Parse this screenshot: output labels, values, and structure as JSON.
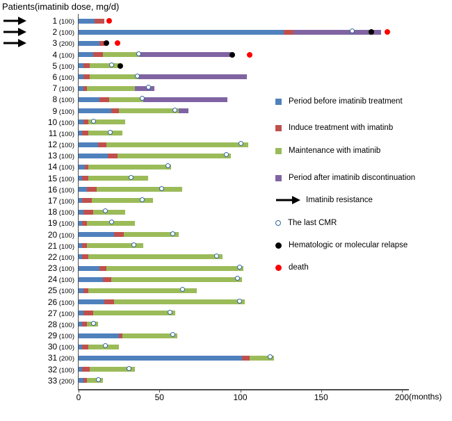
{
  "chart_data": {
    "type": "bar",
    "subtype": "horizontal-stacked-swimmer-plot",
    "title": "Patients(imatinib dose, mg/d)",
    "x_axis": {
      "label": "(months)",
      "min": 0,
      "max": 200,
      "ticks": [
        "0",
        "50",
        "100",
        "150",
        "200"
      ]
    },
    "grid": false,
    "legend_position": "right",
    "colors": {
      "period_before": "#4F81BD",
      "induce": "#C0504D",
      "maintenance": "#9BBB59",
      "period_after": "#8064A2",
      "last_cmr_ring": "#31659C",
      "relapse": "#000000",
      "death": "#FF0000"
    },
    "legend": [
      {
        "swatch": "before",
        "label": "Period before imatinib treatment"
      },
      {
        "swatch": "induce",
        "label": "Induce treatment with imatinb"
      },
      {
        "swatch": "maintenance",
        "label": "Maintenance with imatinib"
      },
      {
        "swatch": "after",
        "label": "Period after imatinib discontinuation"
      },
      {
        "swatch": "arrow",
        "label": "Imatinib resistance"
      },
      {
        "swatch": "cmr",
        "label": "The last CMR"
      },
      {
        "swatch": "relapse",
        "label": "Hematologic or molecular relapse"
      },
      {
        "swatch": "death",
        "label": "death"
      }
    ],
    "patients": [
      {
        "id": 1,
        "dose": 100,
        "resistance": true,
        "segments": {
          "before": 10,
          "induce": 6,
          "maintenance": 0,
          "after": 0
        },
        "markers": {
          "last_cmr": null,
          "relapse": null,
          "death": 19
        }
      },
      {
        "id": 2,
        "dose": 100,
        "resistance": true,
        "segments": {
          "before": 127,
          "induce": 6,
          "maintenance": 0,
          "after": 54
        },
        "markers": {
          "last_cmr": 170,
          "relapse": 181,
          "death": 191
        }
      },
      {
        "id": 3,
        "dose": 200,
        "resistance": true,
        "segments": {
          "before": 13,
          "induce": 4,
          "maintenance": 0,
          "after": 0
        },
        "markers": {
          "last_cmr": null,
          "relapse": 17,
          "death": 24
        }
      },
      {
        "id": 4,
        "dose": 100,
        "resistance": false,
        "segments": {
          "before": 9,
          "induce": 6,
          "maintenance": 23,
          "after": 58
        },
        "markers": {
          "last_cmr": 38,
          "relapse": 95,
          "death": 106
        }
      },
      {
        "id": 5,
        "dose": 100,
        "resistance": false,
        "segments": {
          "before": 3,
          "induce": 4,
          "maintenance": 18,
          "after": 0
        },
        "markers": {
          "last_cmr": 21,
          "relapse": 26,
          "death": null
        }
      },
      {
        "id": 6,
        "dose": 100,
        "resistance": false,
        "segments": {
          "before": 3,
          "induce": 4,
          "maintenance": 30,
          "after": 67
        },
        "markers": {
          "last_cmr": 37,
          "relapse": null,
          "death": null
        }
      },
      {
        "id": 7,
        "dose": 100,
        "resistance": false,
        "segments": {
          "before": 3,
          "induce": 2,
          "maintenance": 30,
          "after": 12
        },
        "markers": {
          "last_cmr": 44,
          "relapse": null,
          "death": null
        }
      },
      {
        "id": 8,
        "dose": 100,
        "resistance": false,
        "segments": {
          "before": 13,
          "induce": 6,
          "maintenance": 21,
          "after": 52
        },
        "markers": {
          "last_cmr": 40,
          "relapse": null,
          "death": null
        }
      },
      {
        "id": 9,
        "dose": 100,
        "resistance": false,
        "segments": {
          "before": 20,
          "induce": 5,
          "maintenance": 37,
          "after": 6
        },
        "markers": {
          "last_cmr": 60,
          "relapse": null,
          "death": null
        }
      },
      {
        "id": 10,
        "dose": 100,
        "resistance": false,
        "segments": {
          "before": 3,
          "induce": 3,
          "maintenance": 23,
          "after": 0
        },
        "markers": {
          "last_cmr": 10,
          "relapse": null,
          "death": null
        }
      },
      {
        "id": 11,
        "dose": 100,
        "resistance": false,
        "segments": {
          "before": 2,
          "induce": 4,
          "maintenance": 21,
          "after": 0
        },
        "markers": {
          "last_cmr": 20,
          "relapse": null,
          "death": null
        }
      },
      {
        "id": 12,
        "dose": 100,
        "resistance": false,
        "segments": {
          "before": 12,
          "induce": 5,
          "maintenance": 88,
          "after": 0
        },
        "markers": {
          "last_cmr": 101,
          "relapse": null,
          "death": null
        }
      },
      {
        "id": 13,
        "dose": 100,
        "resistance": false,
        "segments": {
          "before": 18,
          "induce": 6,
          "maintenance": 70,
          "after": 0
        },
        "markers": {
          "last_cmr": 92,
          "relapse": null,
          "death": null
        }
      },
      {
        "id": 14,
        "dose": 100,
        "resistance": false,
        "segments": {
          "before": 4,
          "induce": 2,
          "maintenance": 51,
          "after": 0
        },
        "markers": {
          "last_cmr": 56,
          "relapse": null,
          "death": null
        }
      },
      {
        "id": 15,
        "dose": 100,
        "resistance": false,
        "segments": {
          "before": 2,
          "induce": 4,
          "maintenance": 37,
          "after": 0
        },
        "markers": {
          "last_cmr": 33,
          "relapse": null,
          "death": null
        }
      },
      {
        "id": 16,
        "dose": 100,
        "resistance": false,
        "segments": {
          "before": 5,
          "induce": 6,
          "maintenance": 53,
          "after": 0
        },
        "markers": {
          "last_cmr": 52,
          "relapse": null,
          "death": null
        }
      },
      {
        "id": 17,
        "dose": 100,
        "resistance": false,
        "segments": {
          "before": 2,
          "induce": 6,
          "maintenance": 38,
          "after": 0
        },
        "markers": {
          "last_cmr": 40,
          "relapse": null,
          "death": null
        }
      },
      {
        "id": 18,
        "dose": 100,
        "resistance": false,
        "segments": {
          "before": 3,
          "induce": 6,
          "maintenance": 20,
          "after": 0
        },
        "markers": {
          "last_cmr": 17,
          "relapse": null,
          "death": null
        }
      },
      {
        "id": 19,
        "dose": 100,
        "resistance": false,
        "segments": {
          "before": 2,
          "induce": 3,
          "maintenance": 30,
          "after": 0
        },
        "markers": {
          "last_cmr": 21,
          "relapse": null,
          "death": null
        }
      },
      {
        "id": 20,
        "dose": 100,
        "resistance": false,
        "segments": {
          "before": 22,
          "induce": 6,
          "maintenance": 34,
          "after": 0
        },
        "markers": {
          "last_cmr": 59,
          "relapse": null,
          "death": null
        }
      },
      {
        "id": 21,
        "dose": 100,
        "resistance": false,
        "segments": {
          "before": 2,
          "induce": 3,
          "maintenance": 35,
          "after": 0
        },
        "markers": {
          "last_cmr": 35,
          "relapse": null,
          "death": null
        }
      },
      {
        "id": 22,
        "dose": 100,
        "resistance": false,
        "segments": {
          "before": 2,
          "induce": 4,
          "maintenance": 83,
          "after": 0
        },
        "markers": {
          "last_cmr": 86,
          "relapse": null,
          "death": null
        }
      },
      {
        "id": 23,
        "dose": 100,
        "resistance": false,
        "segments": {
          "before": 13,
          "induce": 4,
          "maintenance": 85,
          "after": 0
        },
        "markers": {
          "last_cmr": 100,
          "relapse": null,
          "death": null
        }
      },
      {
        "id": 24,
        "dose": 100,
        "resistance": false,
        "segments": {
          "before": 15,
          "induce": 5,
          "maintenance": 81,
          "after": 0
        },
        "markers": {
          "last_cmr": 99,
          "relapse": null,
          "death": null
        }
      },
      {
        "id": 25,
        "dose": 100,
        "resistance": false,
        "segments": {
          "before": 3,
          "induce": 3,
          "maintenance": 67,
          "after": 0
        },
        "markers": {
          "last_cmr": 65,
          "relapse": null,
          "death": null
        }
      },
      {
        "id": 26,
        "dose": 100,
        "resistance": false,
        "segments": {
          "before": 16,
          "induce": 6,
          "maintenance": 81,
          "after": 0
        },
        "markers": {
          "last_cmr": 100,
          "relapse": null,
          "death": null
        }
      },
      {
        "id": 27,
        "dose": 100,
        "resistance": false,
        "segments": {
          "before": 3,
          "induce": 6,
          "maintenance": 51,
          "after": 0
        },
        "markers": {
          "last_cmr": 57,
          "relapse": null,
          "death": null
        }
      },
      {
        "id": 28,
        "dose": 100,
        "resistance": false,
        "segments": {
          "before": 2,
          "induce": 3,
          "maintenance": 7,
          "after": 0
        },
        "markers": {
          "last_cmr": 10,
          "relapse": null,
          "death": null
        }
      },
      {
        "id": 29,
        "dose": 100,
        "resistance": false,
        "segments": {
          "before": 25,
          "induce": 2,
          "maintenance": 34,
          "after": 0
        },
        "markers": {
          "last_cmr": 59,
          "relapse": null,
          "death": null
        }
      },
      {
        "id": 30,
        "dose": 100,
        "resistance": false,
        "segments": {
          "before": 2,
          "induce": 4,
          "maintenance": 19,
          "after": 0
        },
        "markers": {
          "last_cmr": 17,
          "relapse": null,
          "death": null
        }
      },
      {
        "id": 31,
        "dose": 200,
        "resistance": false,
        "segments": {
          "before": 101,
          "induce": 5,
          "maintenance": 15,
          "after": 0
        },
        "markers": {
          "last_cmr": 119,
          "relapse": null,
          "death": null
        }
      },
      {
        "id": 32,
        "dose": 100,
        "resistance": false,
        "segments": {
          "before": 2,
          "induce": 5,
          "maintenance": 28,
          "after": 0
        },
        "markers": {
          "last_cmr": 32,
          "relapse": null,
          "death": null
        }
      },
      {
        "id": 33,
        "dose": 200,
        "resistance": false,
        "segments": {
          "before": 3,
          "induce": 2,
          "maintenance": 10,
          "after": 0
        },
        "markers": {
          "last_cmr": 13,
          "relapse": null,
          "death": null
        }
      }
    ]
  }
}
